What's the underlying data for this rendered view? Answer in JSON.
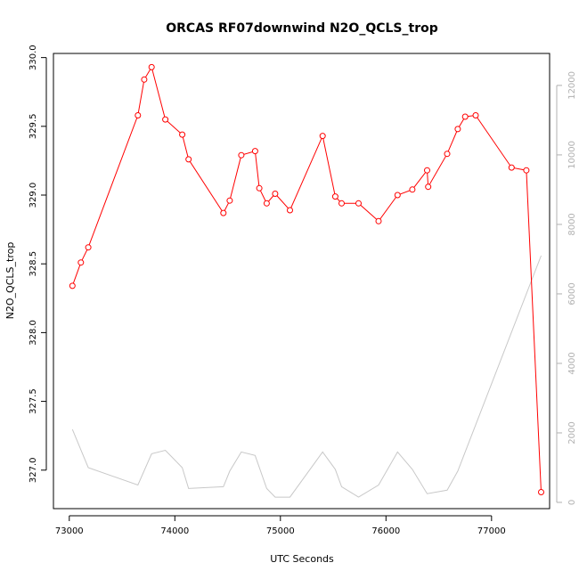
{
  "chart_data": {
    "type": "line",
    "title": "ORCAS RF07downwind N2O_QCLS_trop",
    "xlabel": "UTC Seconds",
    "ylabel": "N2O_QCLS_trop",
    "xlim": [
      72850,
      77550
    ],
    "ylim": [
      326.72,
      330.03
    ],
    "y2lim": [
      -180,
      12920
    ],
    "x_ticks": [
      73000,
      74000,
      75000,
      76000,
      77000
    ],
    "y_ticks": [
      327.0,
      327.5,
      328.0,
      328.5,
      329.0,
      329.5,
      330.0
    ],
    "y_tick_labels": [
      "327.0",
      "327.5",
      "328.0",
      "328.5",
      "329.0",
      "329.5",
      "330.0"
    ],
    "y2_ticks": [
      0,
      2000,
      4000,
      6000,
      8000,
      10000,
      12000
    ],
    "colors": {
      "primary": "#ff0000",
      "secondary": "#c8c8c8",
      "secondary_ticks": "#b0b0b0"
    },
    "series": [
      {
        "axis": "left",
        "style": "line-points",
        "x": [
          73030,
          73110,
          73180,
          73650,
          73710,
          73780,
          73910,
          74070,
          74130,
          74460,
          74520,
          74630,
          74760,
          74800,
          74870,
          74950,
          75090,
          75400,
          75520,
          75580,
          75740,
          75930,
          76110,
          76250,
          76390,
          76400,
          76580,
          76680,
          76750,
          76850,
          77190,
          77330,
          77470
        ],
        "y": [
          328.34,
          328.51,
          328.62,
          329.58,
          329.84,
          329.93,
          329.55,
          329.44,
          329.26,
          328.87,
          328.96,
          329.29,
          329.32,
          329.05,
          328.94,
          329.01,
          328.89,
          329.43,
          328.99,
          328.94,
          328.94,
          328.81,
          329.0,
          329.04,
          329.18,
          329.06,
          329.3,
          329.48,
          329.57,
          329.58,
          329.2,
          329.18,
          326.84
        ]
      },
      {
        "axis": "right",
        "style": "line",
        "x": [
          73030,
          73180,
          73650,
          73780,
          73910,
          74070,
          74130,
          74460,
          74520,
          74630,
          74760,
          74870,
          74950,
          75090,
          75400,
          75520,
          75580,
          75740,
          75930,
          76110,
          76250,
          76390,
          76580,
          76680,
          77470
        ],
        "y": [
          2100,
          1000,
          500,
          1400,
          1500,
          1000,
          400,
          450,
          900,
          1450,
          1350,
          400,
          150,
          150,
          1450,
          950,
          450,
          150,
          500,
          1450,
          950,
          250,
          350,
          900,
          7100
        ]
      }
    ]
  }
}
